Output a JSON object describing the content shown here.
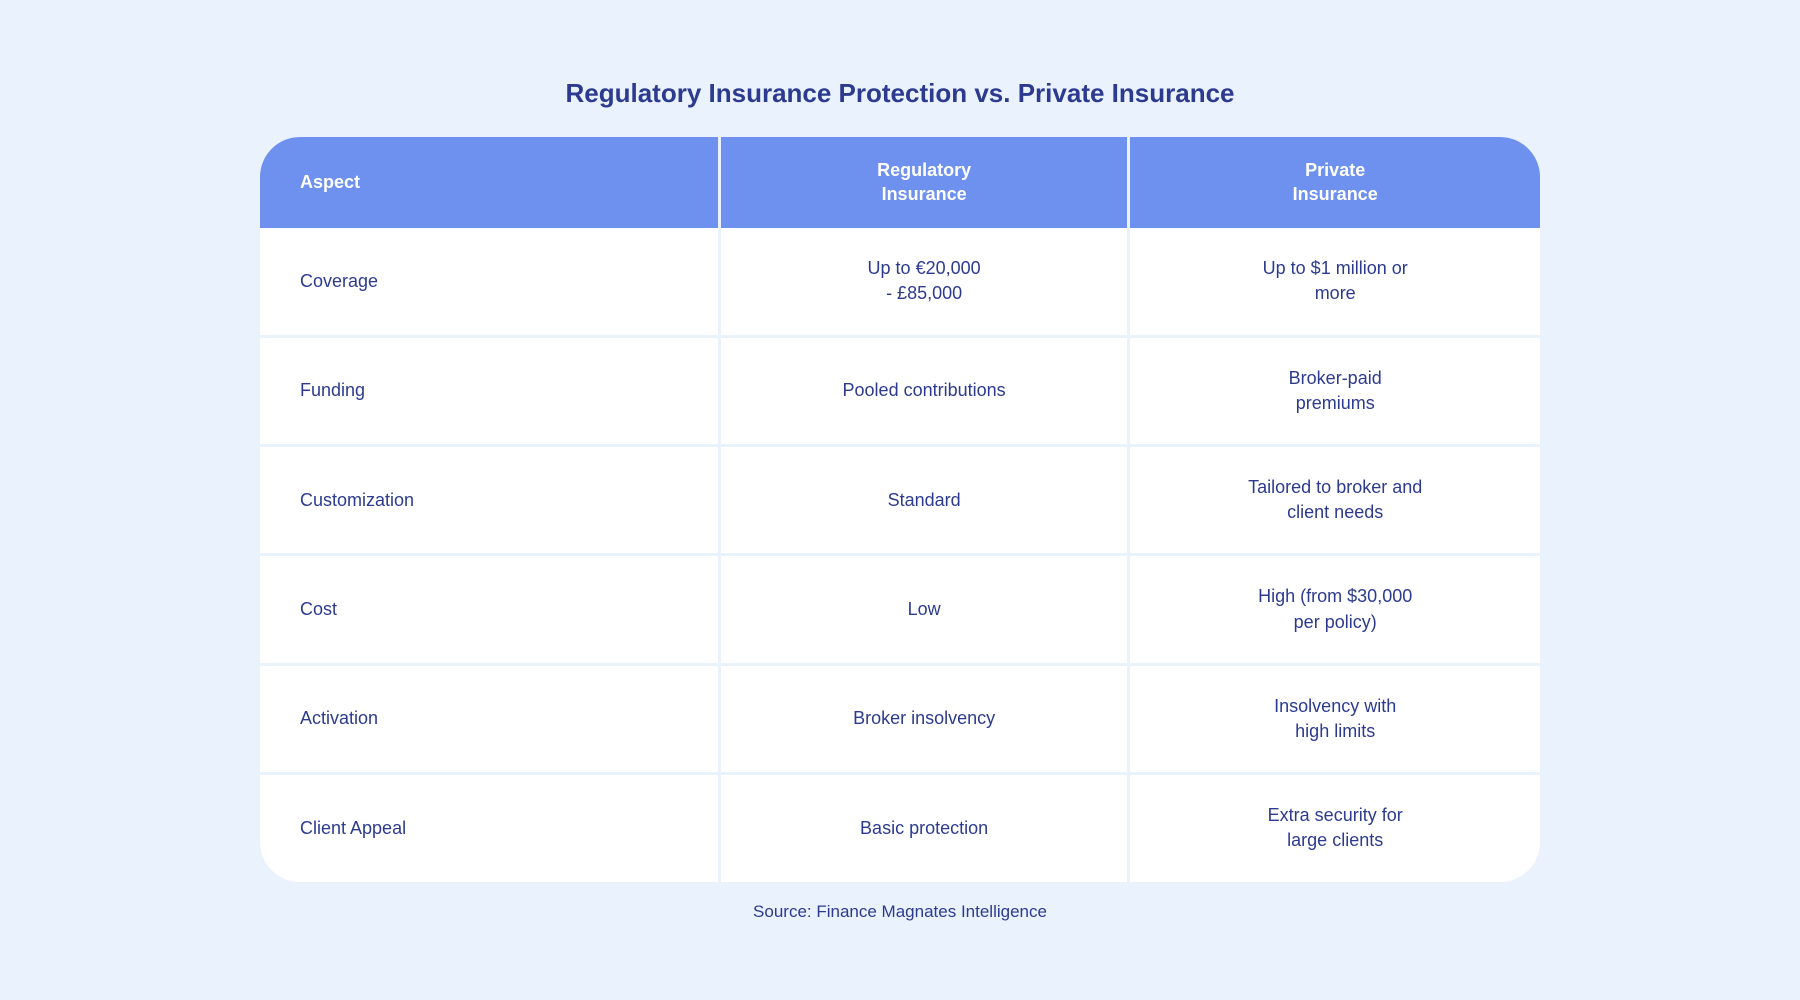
{
  "title": "Regulatory Insurance Protection vs. Private Insurance",
  "source": "Source: Finance Magnates Intelligence",
  "table": {
    "columns": [
      {
        "label": "Aspect",
        "class": "col-aspect"
      },
      {
        "label": "Regulatory\nInsurance",
        "class": "col-reg"
      },
      {
        "label": "Private\nInsurance",
        "class": "col-priv"
      }
    ],
    "rows": [
      {
        "aspect": "Coverage",
        "regulatory": "Up to €20,000\n- £85,000",
        "private": "Up to $1 million or\nmore"
      },
      {
        "aspect": "Funding",
        "regulatory": "Pooled contributions",
        "private": "Broker-paid\npremiums"
      },
      {
        "aspect": "Customization",
        "regulatory": "Standard",
        "private": "Tailored to broker and\nclient needs"
      },
      {
        "aspect": "Cost",
        "regulatory": "Low",
        "private": "High (from $30,000\nper policy)"
      },
      {
        "aspect": "Activation",
        "regulatory": "Broker insolvency",
        "private": "Insolvency with\nhigh limits"
      },
      {
        "aspect": "Client Appeal",
        "regulatory": "Basic protection",
        "private": "Extra security for\nlarge clients"
      }
    ]
  },
  "colors": {
    "background": "#eaf2fd",
    "header_bg": "#6e91f0",
    "cell_bg": "#ffffff",
    "text": "#2c3b8f",
    "header_text": "#ffffff",
    "gap": "#eaf2fd"
  },
  "layout": {
    "border_radius": 40,
    "gap_width": 3
  }
}
